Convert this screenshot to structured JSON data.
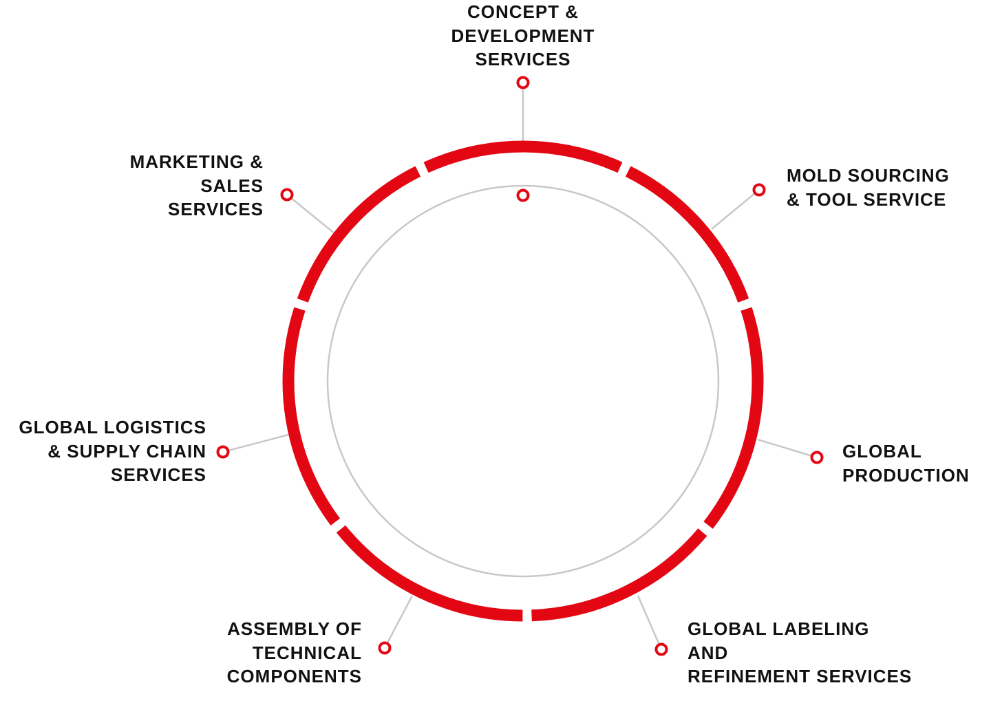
{
  "colors": {
    "accent": "#e30613",
    "connector": "#c8c8c8",
    "text": "#111111",
    "background": "#ffffff"
  },
  "diagram": {
    "center_marker": "red-ring-marker",
    "services": [
      {
        "id": "concept",
        "lines": [
          "CONCEPT &",
          "DEVELOPMENT",
          "SERVICES"
        ]
      },
      {
        "id": "mold",
        "lines": [
          "MOLD SOURCING",
          "& TOOL SERVICE"
        ]
      },
      {
        "id": "production",
        "lines": [
          "GLOBAL",
          "PRODUCTION"
        ]
      },
      {
        "id": "labeling",
        "lines": [
          "GLOBAL LABELING",
          "AND",
          "REFINEMENT SERVICES"
        ]
      },
      {
        "id": "assembly",
        "lines": [
          "ASSEMBLY OF",
          "TECHNICAL",
          "COMPONENTS"
        ]
      },
      {
        "id": "logistics",
        "lines": [
          "GLOBAL LOGISTICS",
          "& SUPPLY CHAIN",
          "SERVICES"
        ]
      },
      {
        "id": "marketing",
        "lines": [
          "MARKETING &",
          "SALES",
          "SERVICES"
        ]
      }
    ]
  }
}
